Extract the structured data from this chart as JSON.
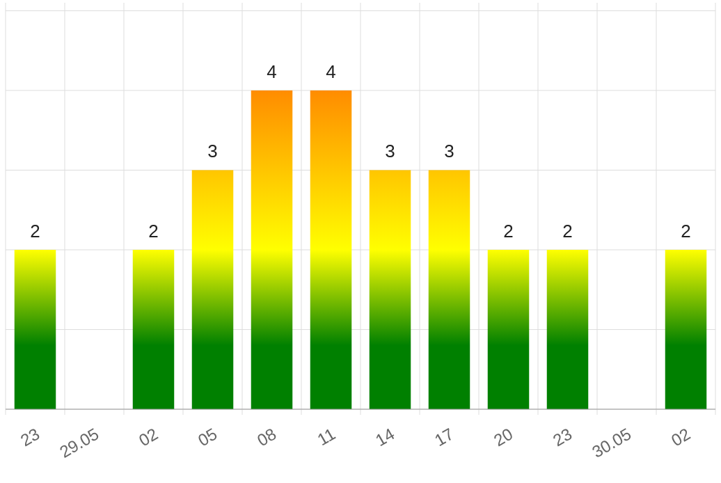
{
  "chart_data": {
    "type": "bar",
    "categories": [
      "23",
      "29.05",
      "02",
      "05",
      "08",
      "11",
      "14",
      "17",
      "20",
      "23",
      "30.05",
      "02"
    ],
    "values": [
      2,
      null,
      2,
      3,
      4,
      4,
      3,
      3,
      2,
      2,
      null,
      2
    ],
    "color": "#008000",
    "ylim": [
      0,
      5.1
    ],
    "yticks": [
      {
        "value": 0,
        "label": null
      },
      {
        "value": 1,
        "label": null
      },
      {
        "value": 2,
        "label": null
      },
      {
        "value": 3,
        "label": null
      },
      {
        "value": 4,
        "label": null
      },
      {
        "value": 5,
        "label": null
      }
    ],
    "tick_labels": "x",
    "grid": true,
    "data_labels": true
  }
}
